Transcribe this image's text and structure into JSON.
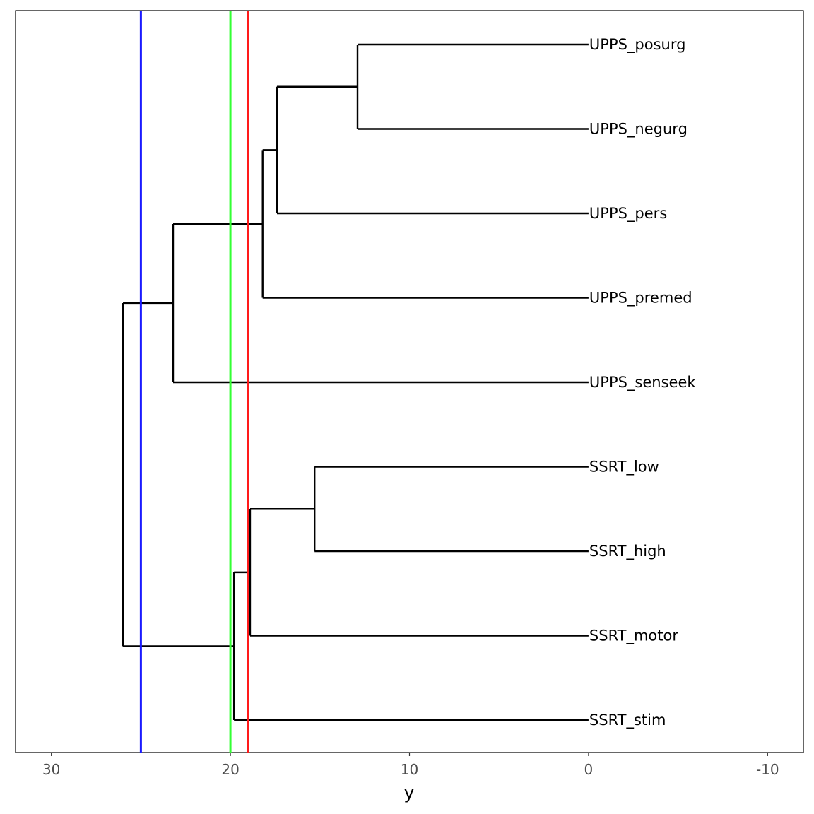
{
  "chart_data": {
    "type": "dendrogram",
    "orientation": "horizontal",
    "title": "",
    "xlabel": "y",
    "ylabel": "",
    "xlim": [
      32,
      -12
    ],
    "x_ticks": [
      30,
      20,
      10,
      0,
      -10
    ],
    "x_tick_labels": [
      "30",
      "20",
      "10",
      "0",
      "-10"
    ],
    "grid": false,
    "leaves": [
      "UPPS_posurg",
      "UPPS_negurg",
      "UPPS_pers",
      "UPPS_premed",
      "UPPS_senseek",
      "SSRT_low",
      "SSRT_high",
      "SSRT_motor",
      "SSRT_stim"
    ],
    "merges": [
      {
        "height": 12.9,
        "children": [
          "UPPS_posurg",
          "UPPS_negurg"
        ]
      },
      {
        "height": 17.4,
        "children": [
          "(UPPS_posurg, UPPS_negurg)",
          "UPPS_pers"
        ]
      },
      {
        "height": 18.2,
        "children": [
          "(UPPS_posurg, UPPS_negurg, UPPS_pers)",
          "UPPS_premed"
        ]
      },
      {
        "height": 23.2,
        "children": [
          "(UPPS_posurg, UPPS_negurg, UPPS_pers, UPPS_premed)",
          "UPPS_senseek"
        ]
      },
      {
        "height": 15.3,
        "children": [
          "SSRT_low",
          "SSRT_high"
        ]
      },
      {
        "height": 18.9,
        "children": [
          "(SSRT_low, SSRT_high)",
          "SSRT_motor"
        ]
      },
      {
        "height": 19.8,
        "children": [
          "(SSRT_low, SSRT_high, SSRT_motor)",
          "SSRT_stim"
        ]
      },
      {
        "height": 26.0,
        "children": [
          "UPPS cluster",
          "SSRT cluster"
        ]
      }
    ],
    "cut_lines": [
      {
        "value": 25.0,
        "color": "#1a1aff"
      },
      {
        "value": 20.0,
        "color": "#33ff33"
      },
      {
        "value": 19.0,
        "color": "#ff1a1a"
      }
    ]
  }
}
